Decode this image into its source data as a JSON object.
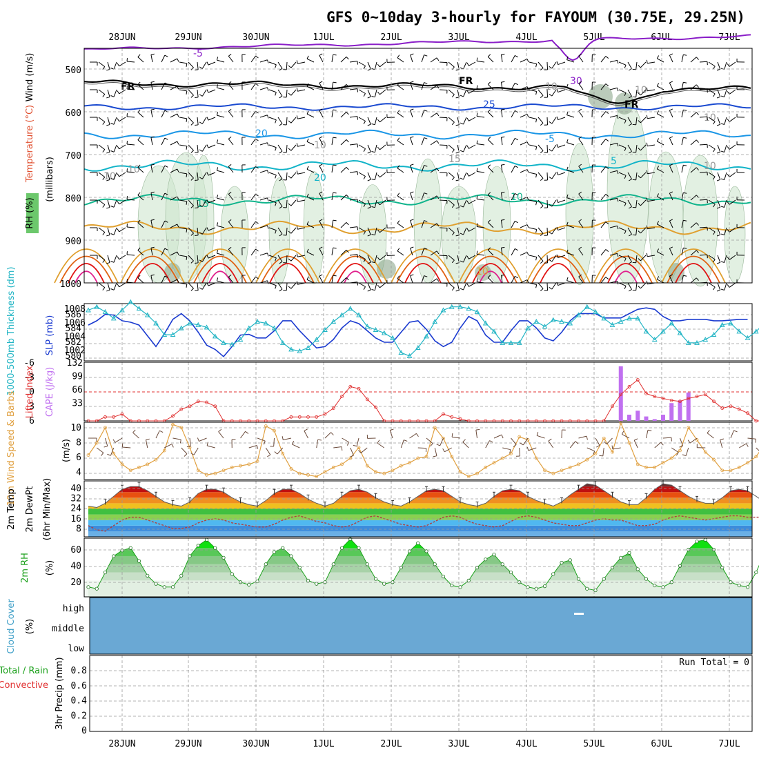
{
  "title": "GFS 0~10day 3-hourly for FAYOUM (30.75E, 29.25N)",
  "dates": [
    "28JUN",
    "29JUN",
    "30JUN",
    "1JUL",
    "2JUL",
    "3JUL",
    "4JUL",
    "5JUL",
    "6JUL",
    "7JUL"
  ],
  "colors": {
    "purple": "#8a1ec8",
    "black": "#000000",
    "blue": "#1a4ad0",
    "lightblue": "#1a96e6",
    "cyan": "#12b4c8",
    "teal": "#10b48c",
    "orange": "#e0a030",
    "darkorange": "#e06010",
    "red": "#e01010",
    "magenta": "#e0208c",
    "rh_green": "#cfe6cf",
    "slp_blue": "#1a3ad0",
    "thick_cyan": "#20b4c4",
    "li_red": "#e03030",
    "cape_purple": "#c070f0",
    "wind_orange": "#e0a040",
    "cloud_blue": "#6aa8d4",
    "rh2m_green": "#1aa01a"
  },
  "panels": {
    "upper_air": {
      "ylabel_rh": "RH (%)",
      "ylabel_temp": "Temperature (°C)",
      "ylabel_wind": "Wind (m/s)",
      "ylabel_mb": "(millibars)",
      "y_ticks": [
        "500",
        "600",
        "700",
        "800",
        "900",
        "1000"
      ],
      "contour_labels": [
        "-5",
        "FR",
        "FR",
        "FR",
        "10",
        "10",
        "15",
        "20",
        "20",
        "15",
        "10",
        "5",
        "-5",
        "25",
        "30",
        "10",
        "10",
        "10",
        "10",
        "10",
        "10"
      ]
    },
    "slp": {
      "ylabel_thick": "1000-500mb Thickness (dm)",
      "ylabel_slp": "SLP (mb)",
      "left_ticks": [
        "586",
        "584",
        "582",
        "580"
      ],
      "right_ticks": [
        "1008",
        "1006",
        "1004",
        "1002"
      ]
    },
    "cape": {
      "ylabel_li": "Lifted Index",
      "ylabel_cape": "CAPE (J/kg)",
      "left_ticks": [
        "-6",
        "-3",
        "0",
        "3",
        "6"
      ],
      "right_ticks": [
        "132",
        "99",
        "66",
        "33"
      ]
    },
    "wind10m": {
      "ylabel": "10m Wind Speed & Barbs",
      "unit": "(m/s)",
      "y_ticks": [
        "10",
        "8",
        "6",
        "4"
      ]
    },
    "temp2m": {
      "ylabel_temp": "2m Temp",
      "ylabel_dew": "2m DewPt",
      "ylabel_minmax": "(6hr Min/Max)",
      "y_ticks": [
        "40",
        "32",
        "24",
        "16",
        "8"
      ]
    },
    "rh2m": {
      "ylabel": "2m RH",
      "unit": "(%)",
      "y_ticks": [
        "60",
        "40",
        "20"
      ]
    },
    "cloud": {
      "ylabel": "Cloud Cover",
      "unit": "(%)",
      "levels": [
        "high",
        "middle",
        "low"
      ]
    },
    "precip": {
      "ylabel_total": "Total / Rain",
      "ylabel_conv": "Convective",
      "ylabel_precip": "3hr Precip (mm)",
      "y_ticks": [
        "0.8",
        "0.6",
        "0.4",
        "0.2",
        "0"
      ],
      "run_total": "Run Total = 0"
    }
  },
  "chart_data": [
    {
      "type": "line",
      "title": "SLP (mb) / 1000-500mb Thickness (dm)",
      "x_step_hours": 3,
      "series": [
        {
          "name": "SLP (mb)",
          "values": [
            1006.0,
            1006.6,
            1007.5,
            1007.4,
            1006.6,
            1006.4,
            1006.0,
            1004.5,
            1003.0,
            1004.8,
            1006.8,
            1007.6,
            1006.6,
            1005.0,
            1003.2,
            1002.6,
            1001.6,
            1003.0,
            1004.6,
            1004.7,
            1004.2,
            1004.2,
            1005.2,
            1006.6,
            1006.6,
            1005.2,
            1004.0,
            1002.8,
            1003.0,
            1004.0,
            1005.6,
            1006.6,
            1006.2,
            1005.2,
            1004.2,
            1003.6,
            1003.6,
            1005.0,
            1006.4,
            1006.6,
            1005.4,
            1003.8,
            1003.0,
            1003.6,
            1005.6,
            1007.2,
            1006.6,
            1004.6,
            1003.6,
            1003.6,
            1005.2,
            1006.6,
            1006.6,
            1005.6,
            1004.2,
            1003.8,
            1005.0,
            1006.6,
            1007.6,
            1007.6,
            1007.6,
            1007.0,
            1007.0,
            1007.0,
            1007.6,
            1008.2,
            1008.4,
            1008.2,
            1007.2,
            1006.6,
            1006.6,
            1006.8,
            1006.8,
            1006.8,
            1006.6,
            1006.6,
            1006.7,
            1006.8,
            1006.8
          ]
        },
        {
          "name": "1000-500mb Thickness (dm)",
          "values": [
            586.2,
            586.6,
            586.0,
            585.2,
            586.2,
            587.2,
            586.4,
            585.6,
            584.6,
            583.2,
            583.2,
            584.0,
            584.6,
            584.4,
            584.1,
            583.0,
            582.2,
            582.0,
            582.6,
            584.0,
            584.8,
            584.6,
            584.0,
            582.2,
            581.4,
            581.2,
            581.6,
            582.6,
            583.8,
            584.8,
            585.6,
            586.4,
            585.6,
            584.2,
            583.8,
            583.4,
            582.8,
            581.0,
            580.6,
            581.6,
            583.0,
            584.8,
            586.2,
            586.6,
            586.6,
            586.4,
            586.0,
            584.6,
            583.6,
            582.2,
            582.2,
            582.2,
            584.0,
            584.8,
            584.2,
            585.0,
            584.8,
            584.6,
            585.6,
            586.6,
            586.0,
            585.2,
            584.4,
            584.8,
            585.2,
            585.2,
            583.6,
            582.6,
            583.6,
            584.6,
            583.4,
            582.2,
            582.2,
            582.6,
            583.2,
            584.4,
            584.6,
            583.6,
            582.8,
            583.6,
            584.6
          ]
        }
      ],
      "ylim_left": [
        580,
        587
      ],
      "ylim_right": [
        1001,
        1009
      ]
    },
    {
      "type": "bar",
      "title": "CAPE (J/kg) / Lifted Index",
      "series": [
        {
          "name": "CAPE (J/kg)",
          "values": [
            0,
            0,
            0,
            0,
            0,
            0,
            0,
            0,
            0,
            0,
            0,
            0,
            0,
            0,
            0,
            0,
            0,
            0,
            0,
            0,
            0,
            0,
            0,
            0,
            0,
            0,
            0,
            0,
            0,
            0,
            0,
            0,
            0,
            0,
            0,
            0,
            0,
            0,
            0,
            0,
            0,
            0,
            0,
            0,
            0,
            0,
            0,
            0,
            0,
            0,
            0,
            0,
            0,
            0,
            0,
            0,
            0,
            0,
            0,
            0,
            0,
            0,
            0,
            123,
            14,
            23,
            10,
            4,
            14,
            40,
            46,
            64,
            0,
            0,
            0,
            0,
            0,
            0,
            0,
            0,
            0
          ]
        },
        {
          "name": "Lifted Index",
          "values": [
            6,
            6,
            5.2,
            5.2,
            4.6,
            6,
            6,
            6,
            6,
            6,
            5,
            3.6,
            3,
            2,
            2.2,
            3,
            6,
            6,
            6,
            6,
            6,
            6,
            6,
            6,
            5.2,
            5.2,
            5.2,
            5.2,
            4.6,
            3.4,
            1,
            -1,
            -0.6,
            1.6,
            3.2,
            6,
            6,
            6,
            6,
            6,
            6,
            6,
            4.6,
            5.2,
            5.6,
            6,
            6,
            6,
            6,
            6,
            6,
            6,
            6,
            6,
            6,
            6,
            6,
            6,
            6,
            6,
            6,
            6,
            3,
            0.6,
            -1,
            -2.4,
            0.4,
            1,
            1.4,
            1.8,
            2,
            1.4,
            1,
            0.6,
            2,
            3.4,
            3.0,
            3.6,
            4.4,
            6,
            6
          ]
        }
      ],
      "ylim_cape": [
        0,
        132
      ],
      "ylim_li": [
        6,
        -6
      ]
    },
    {
      "type": "line",
      "title": "10m Wind Speed (m/s)",
      "series": [
        {
          "name": "10m Wind Speed",
          "values": [
            6.2,
            7.8,
            9.8,
            6.4,
            5.0,
            4.2,
            4.6,
            5.0,
            5.6,
            6.8,
            10.2,
            9.8,
            7.2,
            4.2,
            3.6,
            3.8,
            4.2,
            4.6,
            4.8,
            5.0,
            5.4,
            10.0,
            9.4,
            6.4,
            4.4,
            3.8,
            3.6,
            3.4,
            4.0,
            4.6,
            5.0,
            5.8,
            7.2,
            4.8,
            4.0,
            3.8,
            4.2,
            4.8,
            5.2,
            5.8,
            6.0,
            9.8,
            8.4,
            6.0,
            4.0,
            3.4,
            3.8,
            4.6,
            5.2,
            5.8,
            6.4,
            8.6,
            8.2,
            5.8,
            4.2,
            3.8,
            4.2,
            4.6,
            5.0,
            5.6,
            6.4,
            8.4,
            6.6,
            10.4,
            7.8,
            5.0,
            4.6,
            4.6,
            5.2,
            5.8,
            6.8,
            9.8,
            8.2,
            6.6,
            5.6,
            4.2,
            4.2,
            4.6,
            5.2,
            6.0,
            7.6,
            9.6,
            6.8,
            4.6,
            4.0,
            4.4
          ]
        }
      ],
      "ylim": [
        3,
        10.5
      ]
    },
    {
      "type": "area",
      "title": "2m Temp / 2m DewPt",
      "series": [
        {
          "name": "2m Temp",
          "values": [
            26,
            25,
            28,
            33,
            38,
            40,
            40,
            37,
            33,
            29,
            27,
            26,
            29,
            35,
            38,
            38,
            36,
            32,
            29,
            27,
            26,
            30,
            35,
            38,
            38,
            35,
            31,
            28,
            26,
            28,
            33,
            37,
            38,
            36,
            32,
            29,
            27,
            26,
            29,
            33,
            37,
            38,
            37,
            33,
            29,
            27,
            26,
            28,
            33,
            37,
            38,
            37,
            33,
            30,
            28,
            26,
            29,
            34,
            38,
            42,
            41,
            37,
            33,
            29,
            27,
            27,
            32,
            38,
            42,
            41,
            37,
            33,
            30,
            28,
            28,
            32,
            37,
            38,
            37,
            33,
            29,
            28
          ]
        },
        {
          "name": "2m DewPt",
          "values": [
            12,
            9,
            8,
            12,
            16,
            18,
            18,
            16,
            14,
            12,
            10,
            10,
            11,
            14,
            16,
            17,
            16,
            14,
            13,
            12,
            11,
            11,
            13,
            16,
            18,
            19,
            17,
            15,
            14,
            12,
            11,
            12,
            15,
            18,
            19,
            17,
            15,
            13,
            12,
            11,
            12,
            15,
            18,
            19,
            18,
            15,
            13,
            12,
            11,
            12,
            15,
            18,
            19,
            18,
            16,
            14,
            13,
            12,
            12,
            14,
            16,
            17,
            16,
            16,
            14,
            12,
            12,
            13,
            16,
            18,
            19,
            18,
            17,
            16,
            17,
            18,
            19,
            19,
            18,
            18,
            18,
            17
          ]
        }
      ],
      "ylim": [
        4,
        44
      ]
    },
    {
      "type": "area",
      "title": "2m RH (%)",
      "series": [
        {
          "name": "2m RH",
          "values": [
            12,
            10,
            30,
            50,
            57,
            60,
            44,
            26,
            16,
            12,
            12,
            26,
            50,
            63,
            70,
            60,
            48,
            28,
            18,
            15,
            19,
            40,
            55,
            60,
            50,
            36,
            20,
            16,
            18,
            40,
            60,
            71,
            60,
            40,
            22,
            16,
            18,
            36,
            56,
            66,
            56,
            40,
            25,
            14,
            12,
            20,
            36,
            46,
            52,
            40,
            30,
            18,
            12,
            10,
            13,
            28,
            42,
            45,
            22,
            10,
            8,
            22,
            36,
            48,
            54,
            34,
            22,
            14,
            12,
            18,
            38,
            58,
            68,
            70,
            58,
            36,
            18,
            14,
            12,
            30,
            54,
            66,
            70,
            60,
            48
          ]
        }
      ],
      "ylim": [
        0,
        72
      ]
    },
    {
      "type": "bar",
      "title": "3hr Precip (mm)",
      "series": [
        {
          "name": "Total / Rain",
          "values": [
            0
          ]
        },
        {
          "name": "Convective",
          "values": [
            0
          ]
        }
      ],
      "ylim": [
        0,
        1
      ]
    }
  ]
}
